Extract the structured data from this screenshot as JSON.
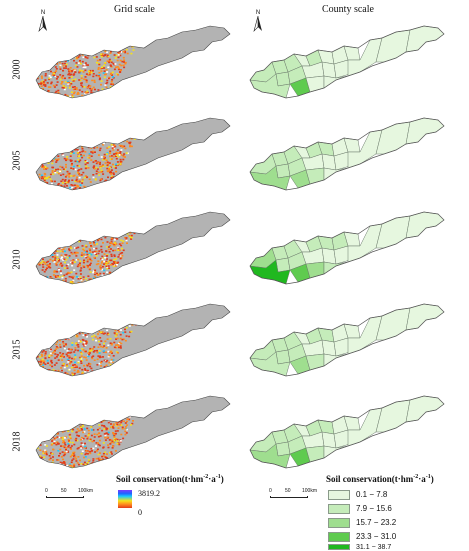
{
  "titles": {
    "grid": "Grid scale",
    "county": "County scale"
  },
  "north_label": "N",
  "years": [
    "2000",
    "2005",
    "2010",
    "2015",
    "2018"
  ],
  "grid_legend": {
    "title_main": "Soil conservation(t·hm",
    "sup1": "-2",
    "mid": "·a",
    "sup2": "-1",
    "close": ")",
    "max": "3819.2",
    "min": "0",
    "colors": [
      "#7a3cff",
      "#1e64ff",
      "#19c8ff",
      "#f7e21a",
      "#ff8a1f",
      "#e23a1a"
    ]
  },
  "scale": {
    "t0": "0",
    "t1": "50",
    "t2": "100km"
  },
  "county_legend": {
    "title_main": "Soil conservation(t·hm",
    "sup1": "-2",
    "mid": "·a",
    "sup2": "-1",
    "close": ")",
    "classes": [
      {
        "label": "0.1 − 7.8",
        "color": "#e6f7df"
      },
      {
        "label": "7.9 − 15.6",
        "color": "#c5ecba"
      },
      {
        "label": "15.7 − 23.2",
        "color": "#9fde8f"
      },
      {
        "label": "23.3 − 31.0",
        "color": "#5fcb4f"
      },
      {
        "label": "31.1 − 38.7",
        "color": "#20b81f"
      }
    ]
  },
  "county_panels": [
    {
      "year": "2000",
      "classes": [
        1,
        1,
        1,
        0,
        1,
        0,
        0,
        0,
        1,
        1,
        0,
        0,
        0,
        0,
        0,
        0,
        3,
        1,
        0,
        0
      ]
    },
    {
      "year": "2005",
      "classes": [
        1,
        1,
        1,
        0,
        1,
        1,
        0,
        0,
        1,
        1,
        0,
        0,
        0,
        0,
        0,
        0,
        2,
        2,
        1,
        0
      ]
    },
    {
      "year": "2010",
      "classes": [
        2,
        1,
        1,
        0,
        1,
        1,
        1,
        0,
        1,
        1,
        0,
        0,
        0,
        0,
        0,
        0,
        3,
        4,
        2,
        1
      ]
    },
    {
      "year": "2015",
      "classes": [
        1,
        1,
        1,
        0,
        1,
        1,
        0,
        0,
        1,
        1,
        0,
        0,
        0,
        0,
        0,
        0,
        2,
        1,
        1,
        0
      ]
    },
    {
      "year": "2018",
      "classes": [
        1,
        1,
        1,
        0,
        1,
        1,
        0,
        0,
        1,
        1,
        0,
        0,
        0,
        0,
        0,
        0,
        3,
        2,
        1,
        0
      ]
    }
  ]
}
